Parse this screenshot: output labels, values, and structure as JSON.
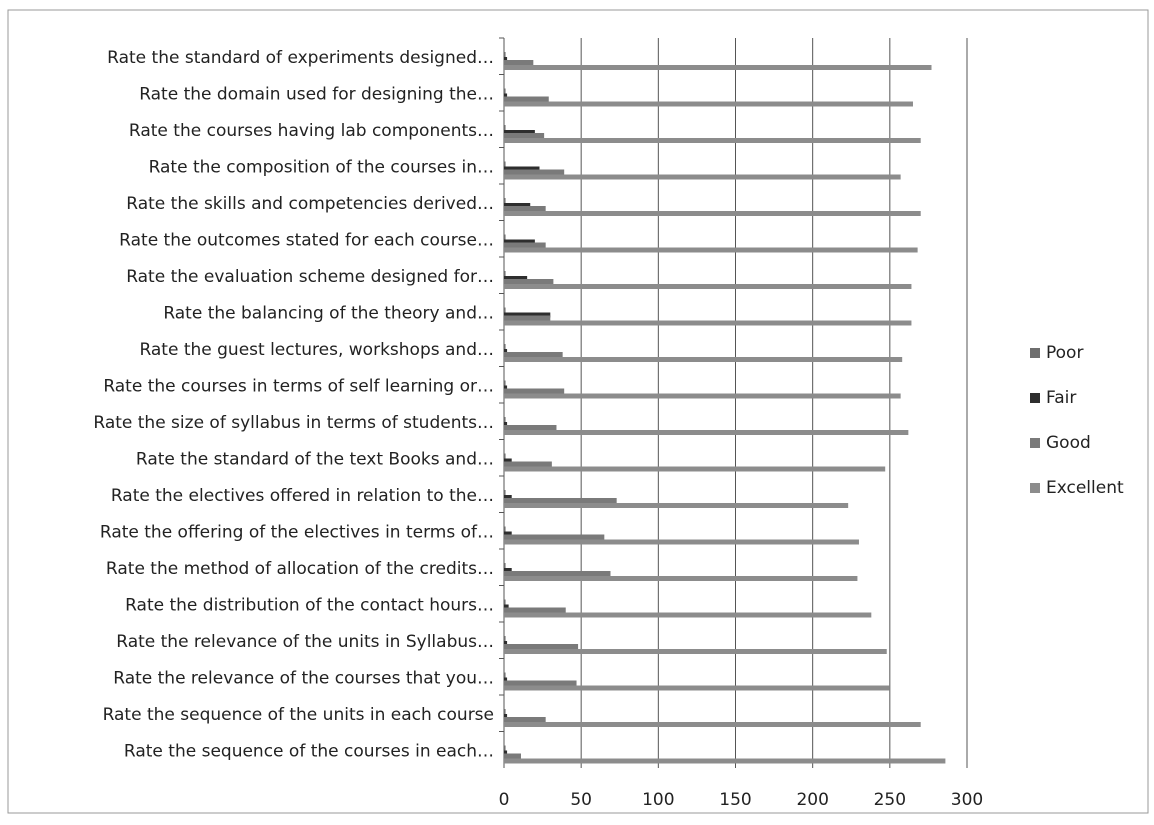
{
  "chart_data": {
    "type": "hbar",
    "categories": [
      "Rate the standard of experiments designed…",
      "Rate the domain used for designing the…",
      "Rate the courses having lab components…",
      "Rate the composition of the courses in…",
      "Rate the skills and competencies derived…",
      "Rate the outcomes stated for each course…",
      "Rate the evaluation scheme designed for…",
      "Rate the balancing of the theory and…",
      "Rate the guest lectures, workshops and…",
      "Rate the courses in terms of self learning or…",
      "Rate the size of syllabus in terms of students…",
      "Rate the standard of the text Books and…",
      "Rate the electives offered in relation to the…",
      "Rate the offering of the electives in terms of…",
      "Rate the method of allocation of the credits…",
      "Rate the distribution of the contact hours…",
      "Rate the relevance of the units in Syllabus…",
      "Rate the relevance of the courses that you…",
      "Rate the sequence of the units in each course",
      "Rate the sequence of the courses in each…"
    ],
    "series": [
      {
        "name": "Poor",
        "color": "#6e6e6e",
        "values": [
          1,
          1,
          1,
          1,
          1,
          1,
          1,
          1,
          1,
          1,
          1,
          1,
          1,
          1,
          1,
          1,
          1,
          1,
          1,
          1
        ]
      },
      {
        "name": "Fair",
        "color": "#2e2e2e",
        "values": [
          2,
          2,
          20,
          23,
          17,
          20,
          15,
          30,
          2,
          2,
          2,
          5,
          5,
          5,
          5,
          3,
          2,
          2,
          2,
          2
        ]
      },
      {
        "name": "Good",
        "color": "#7a7a7a",
        "values": [
          19,
          29,
          26,
          39,
          27,
          27,
          32,
          30,
          38,
          39,
          34,
          31,
          73,
          65,
          69,
          40,
          48,
          47,
          27,
          11
        ]
      },
      {
        "name": "Excellent",
        "color": "#8c8c8c",
        "values": [
          277,
          265,
          270,
          257,
          270,
          268,
          264,
          264,
          258,
          257,
          262,
          247,
          223,
          230,
          229,
          238,
          248,
          250,
          270,
          286
        ]
      }
    ],
    "xlim": [
      0,
      300
    ],
    "xticks": [
      0,
      50,
      100,
      150,
      200,
      250,
      300
    ],
    "grid": true,
    "legend": "right"
  }
}
